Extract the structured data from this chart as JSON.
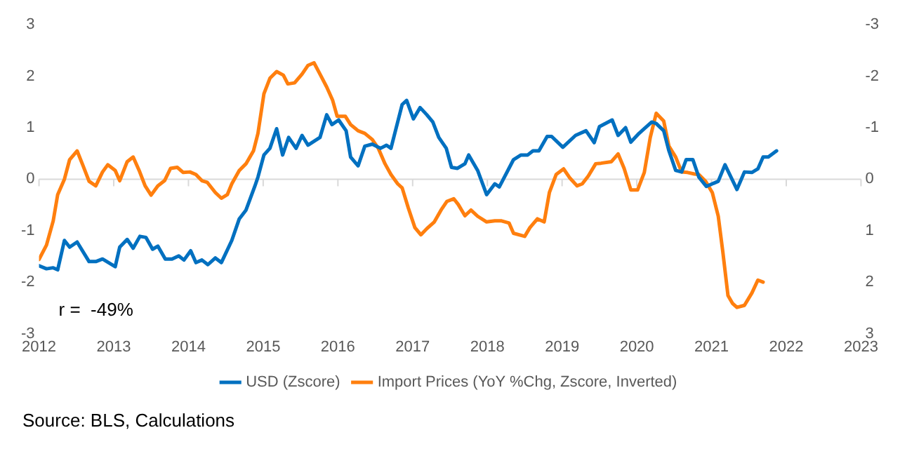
{
  "chart_data": {
    "type": "line",
    "annotations": [
      "r =  -49%",
      "Source: BLS, Calculations"
    ],
    "xlim": [
      2012,
      2023
    ],
    "xticks": [
      2012,
      2013,
      2014,
      2015,
      2016,
      2017,
      2018,
      2019,
      2020,
      2021,
      2022,
      2023
    ],
    "ylim": [
      -3,
      3
    ],
    "yticks": [
      -3,
      -2,
      -1,
      0,
      1,
      2,
      3
    ],
    "y2lim": [
      3,
      -3
    ],
    "y2ticks": [
      -3,
      -2,
      -1,
      0,
      1,
      2,
      3
    ],
    "grid": false,
    "legend": "bottom",
    "marker": "none",
    "line_style": "solid",
    "ref_lines": [
      {
        "axis": "y",
        "value": 0,
        "color": "#d9d9d9"
      }
    ],
    "series": [
      {
        "name": "USD (Zscore)",
        "color": "#0070c0",
        "x": [
          2012.0,
          2012.1,
          2012.19,
          2012.25,
          2012.34,
          2012.41,
          2012.51,
          2012.67,
          2012.76,
          2012.85,
          2013.02,
          2013.08,
          2013.18,
          2013.26,
          2013.35,
          2013.43,
          2013.52,
          2013.59,
          2013.69,
          2013.78,
          2013.87,
          2013.94,
          2014.03,
          2014.1,
          2014.18,
          2014.26,
          2014.36,
          2014.44,
          2014.58,
          2014.68,
          2014.77,
          2014.89,
          2014.93,
          2015.01,
          2015.09,
          2015.18,
          2015.26,
          2015.34,
          2015.44,
          2015.52,
          2015.6,
          2015.76,
          2015.85,
          2015.92,
          2016.01,
          2016.11,
          2016.17,
          2016.27,
          2016.36,
          2016.46,
          2016.57,
          2016.65,
          2016.71,
          2016.86,
          2016.92,
          2017.01,
          2017.1,
          2017.19,
          2017.27,
          2017.35,
          2017.45,
          2017.52,
          2017.6,
          2017.7,
          2017.75,
          2017.87,
          2017.99,
          2018.1,
          2018.16,
          2018.35,
          2018.45,
          2018.54,
          2018.61,
          2018.69,
          2018.8,
          2018.86,
          2019.01,
          2019.18,
          2019.32,
          2019.43,
          2019.5,
          2019.67,
          2019.75,
          2019.85,
          2019.92,
          2020.03,
          2020.1,
          2020.2,
          2020.26,
          2020.36,
          2020.43,
          2020.52,
          2020.6,
          2020.66,
          2020.75,
          2020.83,
          2020.93,
          2021.01,
          2021.09,
          2021.18,
          2021.34,
          2021.44,
          2021.54,
          2021.62,
          2021.69,
          2021.76,
          2021.87
        ],
        "values": [
          -1.68,
          -1.74,
          -1.72,
          -1.76,
          -1.19,
          -1.32,
          -1.22,
          -1.6,
          -1.6,
          -1.55,
          -1.7,
          -1.32,
          -1.17,
          -1.34,
          -1.11,
          -1.13,
          -1.36,
          -1.3,
          -1.55,
          -1.55,
          -1.49,
          -1.57,
          -1.39,
          -1.62,
          -1.57,
          -1.66,
          -1.53,
          -1.62,
          -1.19,
          -0.77,
          -0.6,
          -0.13,
          0.04,
          0.47,
          0.6,
          0.98,
          0.47,
          0.81,
          0.6,
          0.85,
          0.66,
          0.81,
          1.25,
          1.06,
          1.15,
          0.94,
          0.43,
          0.26,
          0.64,
          0.68,
          0.6,
          0.66,
          0.6,
          1.45,
          1.53,
          1.17,
          1.39,
          1.25,
          1.11,
          0.81,
          0.6,
          0.23,
          0.21,
          0.3,
          0.47,
          0.17,
          -0.3,
          -0.09,
          -0.15,
          0.38,
          0.47,
          0.47,
          0.55,
          0.55,
          0.83,
          0.83,
          0.62,
          0.85,
          0.94,
          0.71,
          1.02,
          1.15,
          0.85,
          1.0,
          0.72,
          0.89,
          0.98,
          1.11,
          1.08,
          0.94,
          0.55,
          0.17,
          0.14,
          0.38,
          0.38,
          0.04,
          -0.14,
          -0.09,
          -0.04,
          0.28,
          -0.2,
          0.14,
          0.13,
          0.2,
          0.43,
          0.43,
          0.55
        ]
      },
      {
        "name": "Import Prices (YoY %Chg, Zscore, Inverted)",
        "color": "#ff7f0e",
        "axis": "y2",
        "x": [
          2012.0,
          2012.1,
          2012.19,
          2012.25,
          2012.34,
          2012.41,
          2012.51,
          2012.59,
          2012.67,
          2012.76,
          2012.85,
          2012.92,
          2013.02,
          2013.08,
          2013.18,
          2013.26,
          2013.34,
          2013.42,
          2013.5,
          2013.59,
          2013.68,
          2013.76,
          2013.85,
          2013.93,
          2014.02,
          2014.1,
          2014.18,
          2014.25,
          2014.36,
          2014.44,
          2014.52,
          2014.58,
          2014.68,
          2014.77,
          2014.87,
          2014.93,
          2015.01,
          2015.09,
          2015.18,
          2015.27,
          2015.33,
          2015.42,
          2015.52,
          2015.6,
          2015.68,
          2015.76,
          2015.85,
          2015.93,
          2015.99,
          2016.1,
          2016.17,
          2016.27,
          2016.36,
          2016.46,
          2016.54,
          2016.63,
          2016.71,
          2016.8,
          2016.86,
          2016.94,
          2017.03,
          2017.11,
          2017.19,
          2017.29,
          2017.38,
          2017.46,
          2017.55,
          2017.61,
          2017.7,
          2017.78,
          2017.87,
          2017.99,
          2018.1,
          2018.19,
          2018.29,
          2018.35,
          2018.5,
          2018.57,
          2018.67,
          2018.76,
          2018.83,
          2018.92,
          2019.02,
          2019.1,
          2019.2,
          2019.27,
          2019.35,
          2019.45,
          2019.52,
          2019.66,
          2019.75,
          2019.83,
          2019.92,
          2020.01,
          2020.1,
          2020.18,
          2020.26,
          2020.36,
          2020.43,
          2020.52,
          2020.6,
          2020.68,
          2020.77,
          2020.83,
          2020.92,
          2021.01,
          2021.09,
          2021.15,
          2021.22,
          2021.28,
          2021.34,
          2021.44,
          2021.54,
          2021.62,
          2021.69
        ],
        "values": [
          1.56,
          1.28,
          0.81,
          0.3,
          0,
          -0.38,
          -0.55,
          -0.26,
          0.04,
          0.13,
          -0.14,
          -0.28,
          -0.17,
          0.03,
          -0.34,
          -0.43,
          -0.17,
          0.13,
          0.31,
          0.13,
          0.03,
          -0.21,
          -0.23,
          -0.13,
          -0.14,
          -0.09,
          0.03,
          0.06,
          0.26,
          0.37,
          0.3,
          0.09,
          -0.17,
          -0.3,
          -0.55,
          -0.89,
          -1.66,
          -1.96,
          -2.09,
          -2.02,
          -1.85,
          -1.87,
          -2.04,
          -2.21,
          -2.26,
          -2.04,
          -1.79,
          -1.53,
          -1.22,
          -1.22,
          -1.06,
          -0.94,
          -0.89,
          -0.77,
          -0.6,
          -0.3,
          -0.09,
          0.09,
          0.17,
          0.55,
          0.94,
          1.08,
          0.96,
          0.83,
          0.6,
          0.43,
          0.38,
          0.49,
          0.71,
          0.6,
          0.72,
          0.83,
          0.81,
          0.81,
          0.85,
          1.05,
          1.11,
          0.94,
          0.77,
          0.83,
          0.26,
          -0.09,
          -0.2,
          -0.03,
          0.13,
          0.09,
          -0.06,
          -0.3,
          -0.31,
          -0.34,
          -0.49,
          -0.21,
          0.21,
          0.21,
          -0.13,
          -0.81,
          -1.28,
          -1.13,
          -0.64,
          -0.43,
          -0.14,
          -0.13,
          -0.1,
          -0.09,
          0.04,
          0.26,
          0.72,
          1.4,
          2.26,
          2.41,
          2.49,
          2.45,
          2.21,
          1.96,
          2.0
        ]
      }
    ]
  }
}
